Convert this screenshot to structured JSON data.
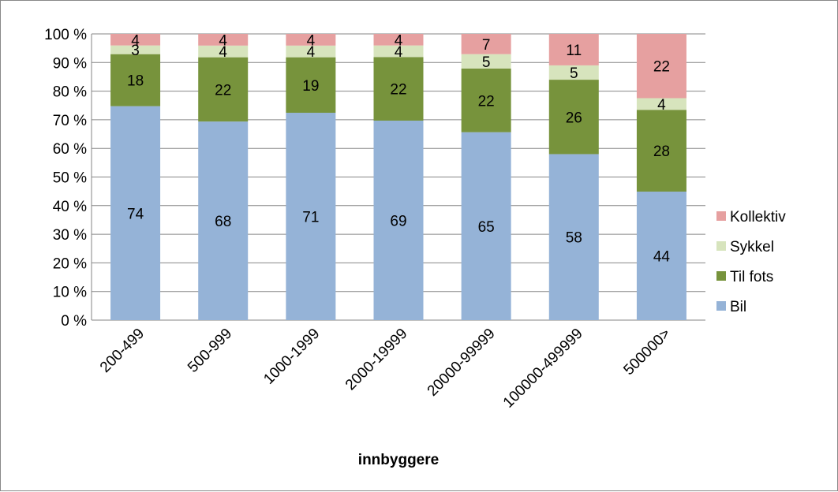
{
  "chart_data": {
    "type": "bar",
    "stacked": true,
    "percent_stacked": true,
    "title": "",
    "xlabel": "innbyggere",
    "ylabel": "",
    "ylim": [
      0,
      100
    ],
    "y_ticks": [
      "0 %",
      "10 %",
      "20 %",
      "30 %",
      "40 %",
      "50 %",
      "60 %",
      "70 %",
      "80 %",
      "90 %",
      "100 %"
    ],
    "grid": true,
    "legend_position": "right",
    "categories": [
      "200-499",
      "500-999",
      "1000-1999",
      "2000-19999",
      "20000-99999",
      "100000-499999",
      "500000>"
    ],
    "series": [
      {
        "name": "Bil",
        "color": "#95B3D7",
        "values": [
          74,
          68,
          71,
          69,
          65,
          58,
          44
        ]
      },
      {
        "name": "Til fots",
        "color": "#77933C",
        "values": [
          18,
          22,
          19,
          22,
          22,
          26,
          28
        ]
      },
      {
        "name": "Sykkel",
        "color": "#D7E4BD",
        "values": [
          3,
          4,
          4,
          4,
          5,
          5,
          4
        ]
      },
      {
        "name": "Kollektiv",
        "color": "#E6A0A0",
        "values": [
          4,
          4,
          4,
          4,
          7,
          11,
          22
        ]
      }
    ]
  }
}
